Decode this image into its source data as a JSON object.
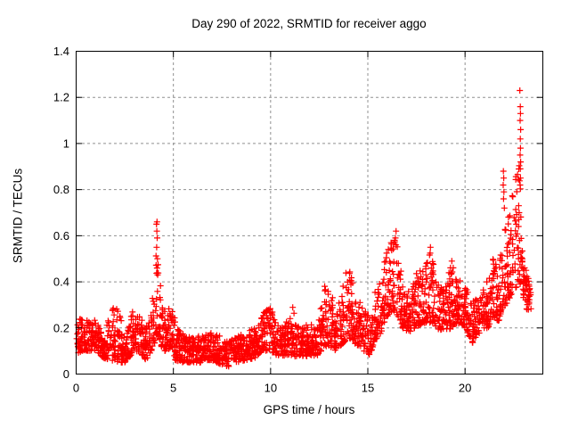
{
  "chart_data": {
    "type": "scatter",
    "title": "Day 290 of 2022, SRMTID for receiver aggo",
    "xlabel": "GPS time / hours",
    "ylabel": "SRMTID / TECUs",
    "xlim": [
      0,
      24
    ],
    "ylim": [
      0,
      1.4
    ],
    "xticks": [
      {
        "v": 0,
        "label": "0"
      },
      {
        "v": 5,
        "label": "5"
      },
      {
        "v": 10,
        "label": "10"
      },
      {
        "v": 15,
        "label": "15"
      },
      {
        "v": 20,
        "label": "20"
      }
    ],
    "yticks": [
      {
        "v": 0,
        "label": "0"
      },
      {
        "v": 0.2,
        "label": "0.2"
      },
      {
        "v": 0.4,
        "label": "0.4"
      },
      {
        "v": 0.6,
        "label": "0.6"
      },
      {
        "v": 0.8,
        "label": "0.8"
      },
      {
        "v": 1,
        "label": "1"
      },
      {
        "v": 1.2,
        "label": "1.2"
      },
      {
        "v": 1.4,
        "label": "1.4"
      }
    ],
    "grid": true,
    "legend_position": "none",
    "marker": {
      "shape": "plus",
      "color": "#ff0000",
      "size": 7
    },
    "grid_color": "#909090",
    "axis_color": "#000000",
    "background": "#ffffff",
    "series": [
      {
        "name": "SRMTID",
        "points_per_hour": 105,
        "seed": 20221290,
        "envelope": [
          [
            0.0,
            0.09,
            0.23
          ],
          [
            0.5,
            0.1,
            0.25
          ],
          [
            1.0,
            0.1,
            0.24
          ],
          [
            1.4,
            0.07,
            0.16
          ],
          [
            1.8,
            0.06,
            0.28
          ],
          [
            2.2,
            0.05,
            0.3
          ],
          [
            2.5,
            0.05,
            0.14
          ],
          [
            2.9,
            0.09,
            0.28
          ],
          [
            3.2,
            0.1,
            0.26
          ],
          [
            3.6,
            0.06,
            0.2
          ],
          [
            4.0,
            0.12,
            0.38
          ],
          [
            4.15,
            0.18,
            0.66
          ],
          [
            4.3,
            0.15,
            0.55
          ],
          [
            4.45,
            0.1,
            0.3
          ],
          [
            4.7,
            0.1,
            0.26
          ],
          [
            4.9,
            0.12,
            0.35
          ],
          [
            5.1,
            0.06,
            0.22
          ],
          [
            5.5,
            0.05,
            0.18
          ],
          [
            6.0,
            0.05,
            0.16
          ],
          [
            6.5,
            0.05,
            0.17
          ],
          [
            7.0,
            0.06,
            0.18
          ],
          [
            7.5,
            0.04,
            0.16
          ],
          [
            7.8,
            0.03,
            0.14
          ],
          [
            8.2,
            0.05,
            0.16
          ],
          [
            8.7,
            0.06,
            0.18
          ],
          [
            9.2,
            0.07,
            0.2
          ],
          [
            9.6,
            0.1,
            0.28
          ],
          [
            10.0,
            0.1,
            0.3
          ],
          [
            10.3,
            0.08,
            0.22
          ],
          [
            10.7,
            0.08,
            0.2
          ],
          [
            11.1,
            0.08,
            0.3
          ],
          [
            11.5,
            0.07,
            0.2
          ],
          [
            12.0,
            0.08,
            0.22
          ],
          [
            12.4,
            0.08,
            0.2
          ],
          [
            12.8,
            0.12,
            0.42
          ],
          [
            13.05,
            0.12,
            0.4
          ],
          [
            13.3,
            0.1,
            0.28
          ],
          [
            13.6,
            0.12,
            0.32
          ],
          [
            13.9,
            0.15,
            0.47
          ],
          [
            14.1,
            0.15,
            0.44
          ],
          [
            14.45,
            0.12,
            0.35
          ],
          [
            14.8,
            0.1,
            0.28
          ],
          [
            15.1,
            0.08,
            0.26
          ],
          [
            15.4,
            0.15,
            0.38
          ],
          [
            15.7,
            0.18,
            0.42
          ],
          [
            16.0,
            0.25,
            0.55
          ],
          [
            16.3,
            0.28,
            0.6
          ],
          [
            16.55,
            0.25,
            0.55
          ],
          [
            16.8,
            0.2,
            0.42
          ],
          [
            17.1,
            0.18,
            0.36
          ],
          [
            17.5,
            0.2,
            0.44
          ],
          [
            17.9,
            0.22,
            0.46
          ],
          [
            18.2,
            0.22,
            0.56
          ],
          [
            18.5,
            0.2,
            0.42
          ],
          [
            18.9,
            0.18,
            0.36
          ],
          [
            19.3,
            0.2,
            0.5
          ],
          [
            19.6,
            0.22,
            0.42
          ],
          [
            20.0,
            0.2,
            0.38
          ],
          [
            20.4,
            0.13,
            0.32
          ],
          [
            20.8,
            0.18,
            0.35
          ],
          [
            21.2,
            0.2,
            0.42
          ],
          [
            21.45,
            0.25,
            0.52
          ],
          [
            21.7,
            0.22,
            0.45
          ],
          [
            21.9,
            0.28,
            0.55
          ],
          [
            22.1,
            0.3,
            0.65
          ],
          [
            22.3,
            0.33,
            0.72
          ],
          [
            22.55,
            0.36,
            0.85
          ],
          [
            22.75,
            0.4,
            1.0
          ],
          [
            22.9,
            0.38,
            0.75
          ],
          [
            23.05,
            0.3,
            0.5
          ],
          [
            23.25,
            0.27,
            0.42
          ],
          [
            23.4,
            0.26,
            0.36
          ]
        ],
        "peak_points": [
          [
            4.13,
            0.65
          ],
          [
            4.16,
            0.66
          ],
          [
            4.15,
            0.62
          ],
          [
            4.17,
            0.59
          ],
          [
            4.14,
            0.55
          ],
          [
            4.18,
            0.5
          ],
          [
            4.16,
            0.46
          ],
          [
            4.19,
            0.43
          ],
          [
            16.45,
            0.62
          ],
          [
            16.42,
            0.59
          ],
          [
            18.22,
            0.55
          ],
          [
            19.32,
            0.49
          ],
          [
            21.97,
            0.88
          ],
          [
            21.99,
            0.85
          ],
          [
            21.96,
            0.82
          ],
          [
            22.0,
            0.79
          ],
          [
            21.98,
            0.76
          ],
          [
            22.02,
            0.72
          ],
          [
            22.82,
            1.23
          ],
          [
            22.84,
            1.16
          ],
          [
            22.85,
            1.13
          ],
          [
            22.83,
            1.1
          ],
          [
            22.86,
            1.06
          ],
          [
            22.84,
            1.02
          ],
          [
            22.85,
            0.98
          ],
          [
            22.83,
            0.95
          ],
          [
            22.86,
            0.92
          ],
          [
            22.84,
            0.89
          ],
          [
            22.85,
            0.85
          ],
          [
            22.83,
            0.82
          ],
          [
            22.76,
            0.73
          ],
          [
            22.78,
            0.7
          ],
          [
            22.77,
            0.67
          ],
          [
            22.75,
            0.64
          ]
        ]
      }
    ]
  }
}
